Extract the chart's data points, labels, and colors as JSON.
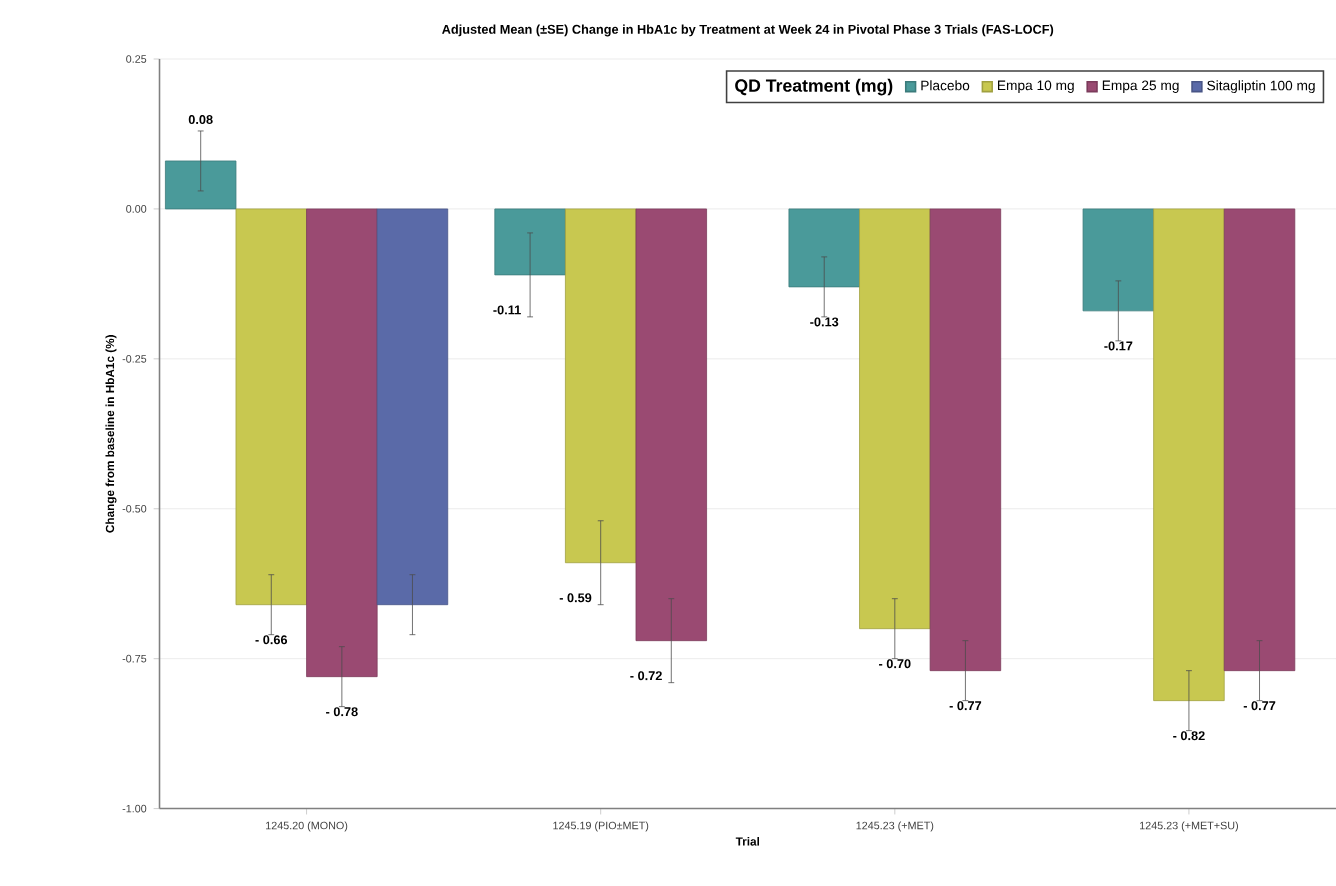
{
  "chart_data": {
    "type": "bar",
    "title": "Adjusted Mean (±SE) Change in HbA1c by Treatment at Week 24 in Pivotal Phase 3 Trials (FAS-LOCF)",
    "xlabel": "Trial",
    "ylabel": "Change from baseline in HbA1c (%)",
    "legend_title": "QD Treatment (mg)",
    "categories": [
      "1245.20 (MONO)",
      "1245.19 (PIO±MET)",
      "1245.23 (+MET)",
      "1245.23 (+MET+SU)"
    ],
    "series": [
      {
        "name": "Placebo",
        "color": "#4a9a9a",
        "values": [
          0.08,
          -0.11,
          -0.13,
          -0.17
        ],
        "errors": [
          0.05,
          0.07,
          0.05,
          0.05
        ],
        "value_labels": [
          "0.08",
          "-0.11",
          "-0.13",
          "-0.17"
        ]
      },
      {
        "name": "Empa 10 mg",
        "color": "#c8c850",
        "values": [
          -0.66,
          -0.59,
          -0.7,
          -0.82
        ],
        "errors": [
          0.05,
          0.07,
          0.05,
          0.05
        ],
        "value_labels": [
          "- 0.66",
          "- 0.59",
          "- 0.70",
          "- 0.82"
        ]
      },
      {
        "name": "Empa 25 mg",
        "color": "#9a4a72",
        "values": [
          -0.78,
          -0.72,
          -0.77,
          -0.77
        ],
        "errors": [
          0.05,
          0.07,
          0.05,
          0.05
        ],
        "value_labels": [
          "- 0.78",
          "- 0.72",
          "- 0.77",
          "- 0.77"
        ]
      },
      {
        "name": "Sitagliptin 100 mg",
        "color": "#5a6aa8",
        "values": [
          -0.66,
          null,
          null,
          null
        ],
        "errors": [
          0.05,
          null,
          null,
          null
        ],
        "value_labels": [
          null,
          null,
          null,
          null
        ]
      }
    ],
    "ylim": [
      -1.0,
      0.25
    ],
    "yticks": [
      {
        "value": 0.25,
        "label": "0.25"
      },
      {
        "value": 0,
        "label": "0.00"
      },
      {
        "value": -0.25,
        "label": "-0.25"
      },
      {
        "value": -0.5,
        "label": "-0.50"
      },
      {
        "value": -0.75,
        "label": "-0.75"
      },
      {
        "value": -1.0,
        "label": "-1.00"
      }
    ],
    "grid": "y",
    "legend": "top right"
  }
}
